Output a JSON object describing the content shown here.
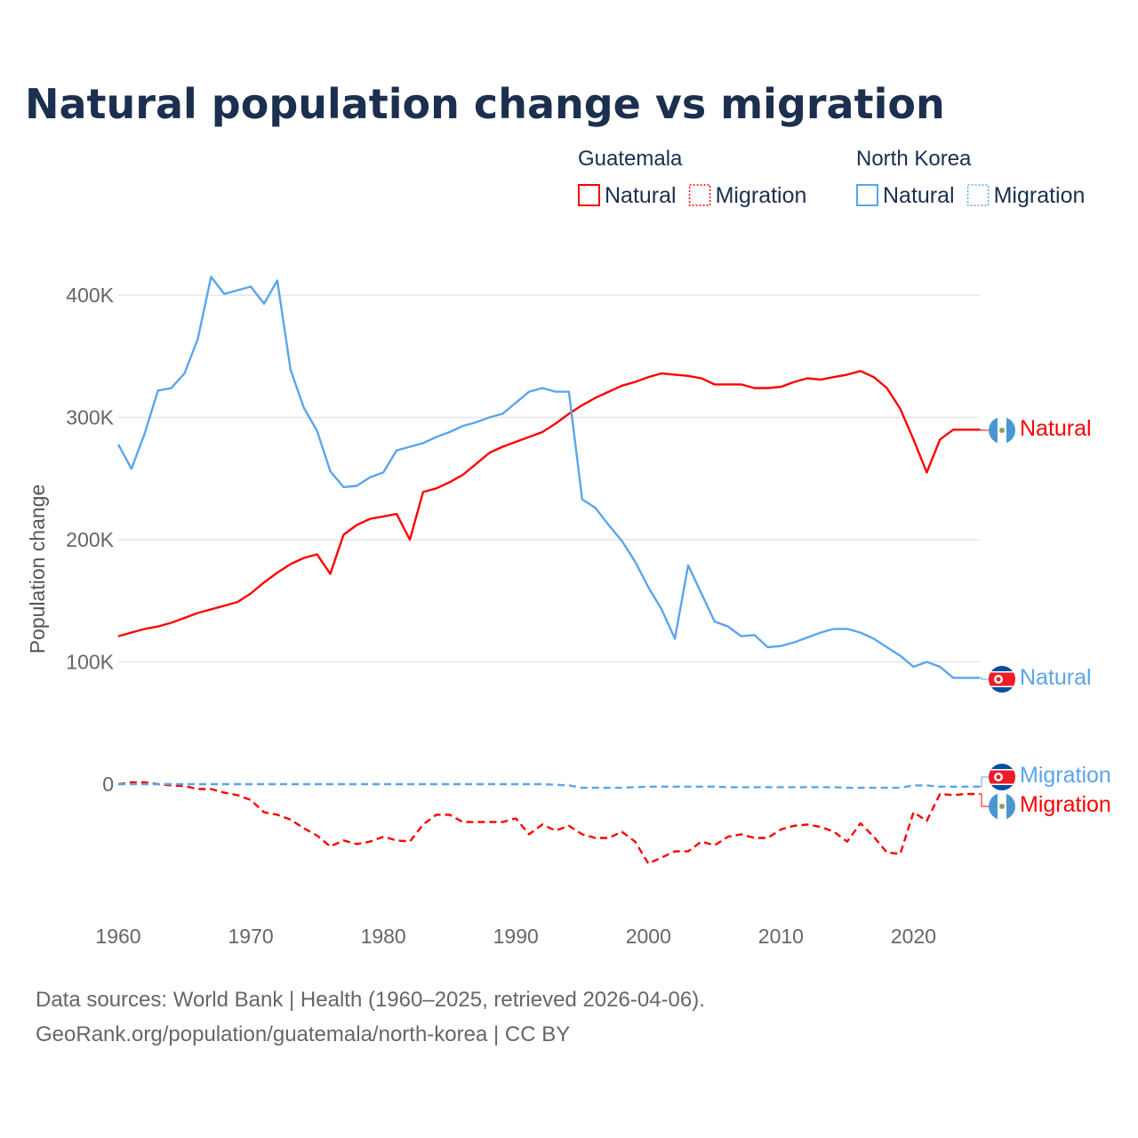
{
  "chart_data": {
    "type": "line",
    "title": "Natural population change vs migration",
    "xlabel": "",
    "ylabel": "Population change",
    "xlim": [
      1960,
      2025
    ],
    "ylim": [
      -85000,
      420000
    ],
    "yticks": [
      0,
      100000,
      200000,
      300000,
      400000
    ],
    "ytick_labels": [
      "0",
      "100K",
      "200K",
      "300K",
      "400K"
    ],
    "xticks": [
      1960,
      1970,
      1980,
      1990,
      2000,
      2010,
      2020
    ],
    "grid": true,
    "legend_placement": "top-right",
    "legend_groups": [
      {
        "country": "Guatemala",
        "entries": [
          "Natural",
          "Migration"
        ]
      },
      {
        "country": "North Korea",
        "entries": [
          "Natural",
          "Migration"
        ]
      }
    ],
    "x_start": 1960,
    "series": [
      {
        "name": "Guatemala Natural",
        "country": "Guatemala",
        "kind": "Natural",
        "label": "Natural",
        "color": "#ff0000",
        "dashed": false,
        "flag": "guatemala",
        "values_k": [
          121,
          124,
          127,
          129,
          132,
          136,
          140,
          143,
          146,
          149,
          156,
          165,
          173,
          180,
          185,
          188,
          172,
          204,
          212,
          217,
          219,
          221,
          200,
          239,
          242,
          247,
          253,
          262,
          271,
          276,
          280,
          284,
          288,
          295,
          303,
          310,
          316,
          321,
          326,
          329,
          333,
          336,
          335,
          334,
          332,
          327,
          327,
          327,
          324,
          324,
          325,
          329,
          332,
          331,
          333,
          335,
          338,
          333,
          324,
          307,
          282,
          255,
          282,
          290,
          290,
          290
        ]
      },
      {
        "name": "Guatemala Migration",
        "country": "Guatemala",
        "kind": "Migration",
        "label": "Migration",
        "color": "#ff0000",
        "dashed": true,
        "flag": "guatemala",
        "values_k": [
          0,
          1.5,
          1.5,
          0,
          -1,
          -1.5,
          -4,
          -4,
          -7,
          -9,
          -13,
          -23,
          -25,
          -29,
          -36,
          -42,
          -51,
          -46,
          -49,
          -47,
          -43,
          -46,
          -47,
          -33,
          -25,
          -25,
          -31,
          -31,
          -31,
          -31,
          -28,
          -41,
          -33,
          -38,
          -34,
          -41,
          -44,
          -44,
          -39,
          -47,
          -65,
          -60,
          -55,
          -55,
          -47,
          -50,
          -43,
          -41,
          -44,
          -44,
          -37,
          -34,
          -33,
          -35,
          -39,
          -47,
          -32,
          -43,
          -56,
          -57,
          -23,
          -30,
          -8,
          -9,
          -8,
          -8
        ]
      },
      {
        "name": "North Korea Natural",
        "country": "North Korea",
        "kind": "Natural",
        "label": "Natural",
        "color": "#5aa5ec",
        "dashed": false,
        "flag": "north-korea",
        "values_k": [
          278,
          258,
          287,
          322,
          324,
          336,
          364,
          415,
          401,
          404,
          407,
          393,
          412,
          339,
          308,
          289,
          256,
          243,
          244,
          251,
          255,
          273,
          276,
          279,
          284,
          288,
          293,
          296,
          300,
          303,
          312,
          321,
          324,
          321,
          321,
          233,
          226,
          212,
          199,
          182,
          161,
          143,
          119,
          179,
          156,
          133,
          129,
          121,
          122,
          112,
          113,
          116,
          120,
          124,
          127,
          127,
          124,
          119,
          112,
          105,
          96,
          100,
          96,
          87,
          87,
          87
        ]
      },
      {
        "name": "North Korea Migration",
        "country": "North Korea",
        "kind": "Migration",
        "label": "Migration",
        "color": "#5aa5ec",
        "dashed": true,
        "flag": "north-korea",
        "values_k": [
          0,
          0,
          0,
          0,
          0,
          0,
          0,
          0,
          0,
          0,
          0,
          0,
          0,
          0,
          0,
          0,
          0,
          0,
          0,
          0,
          0,
          0,
          0,
          0,
          0,
          0,
          0,
          0,
          0,
          0,
          0,
          0,
          0,
          -0.5,
          -1,
          -3,
          -3,
          -3,
          -3,
          -2.5,
          -2,
          -2,
          -2,
          -2,
          -2,
          -2,
          -2.5,
          -2.5,
          -2.5,
          -2.5,
          -2.5,
          -2.5,
          -2.5,
          -2.5,
          -2.5,
          -3,
          -3,
          -3,
          -3,
          -3,
          -1,
          -1,
          -2,
          -2,
          -2,
          -2
        ]
      }
    ]
  },
  "source": {
    "line1": "Data sources: World Bank | Health (1960–2025, retrieved 2026-04-06).",
    "line2": "GeoRank.org/population/guatemala/north-korea | CC BY"
  }
}
